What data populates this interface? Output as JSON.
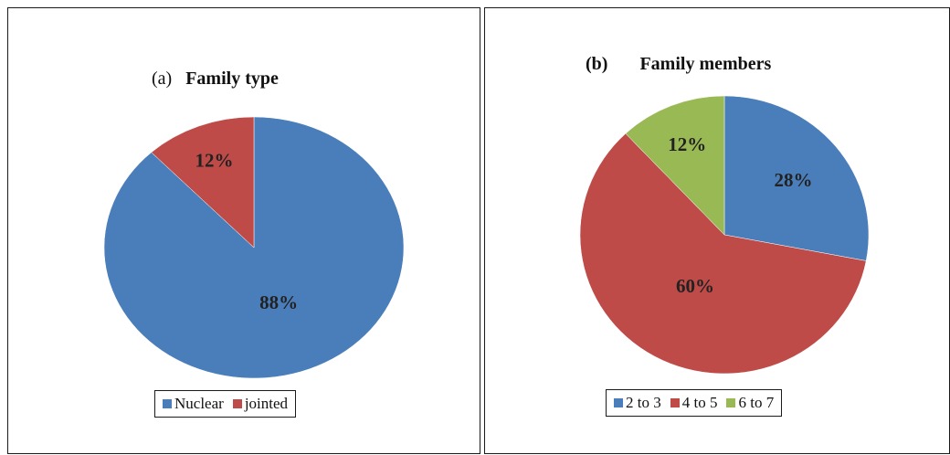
{
  "chart_data": [
    {
      "type": "pie",
      "title_prefix": "(a)",
      "title": "Family type",
      "categories": [
        "Nuclear",
        "jointed"
      ],
      "values": [
        88,
        12
      ],
      "data_labels": [
        "88%",
        "12%"
      ],
      "colors": [
        "#4a7ebb",
        "#be4b48"
      ],
      "legend": {
        "entries": [
          "Nuclear",
          "jointed"
        ],
        "placement": "bottom"
      }
    },
    {
      "type": "pie",
      "title_prefix": "(b)",
      "title": "Family members",
      "categories": [
        "2 to 3",
        "4 to 5",
        "6 to 7"
      ],
      "values": [
        28,
        60,
        12
      ],
      "data_labels": [
        "28%",
        "60%",
        "12%"
      ],
      "colors": [
        "#4a7ebb",
        "#be4b48",
        "#98b954"
      ],
      "legend": {
        "entries": [
          "2 to 3",
          "4 to 5",
          "6 to 7"
        ],
        "placement": "bottom"
      }
    }
  ]
}
